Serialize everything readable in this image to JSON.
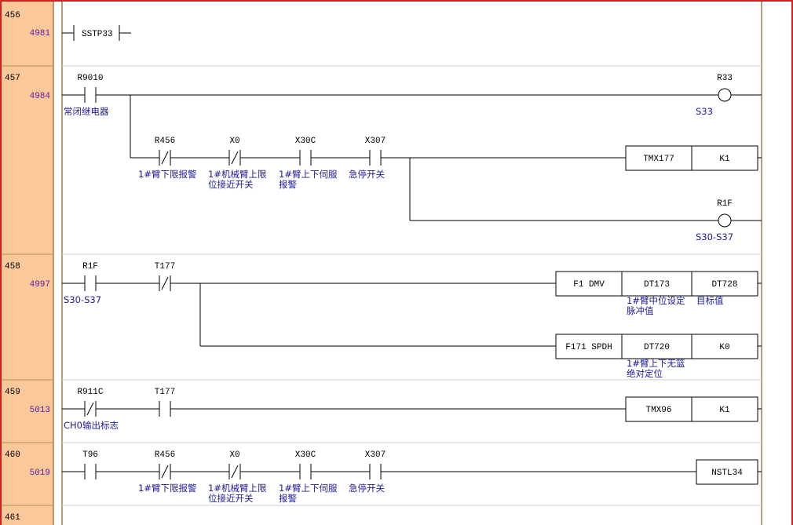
{
  "colors": {
    "gutter": "#fbc89a",
    "rail": "#a47c46",
    "wire": "#000000",
    "comment": "#1c1c9c",
    "address": "#5a1aa8",
    "border": "#d02020"
  },
  "rungs": [
    {
      "step": "456",
      "address": "4981",
      "elements": [
        {
          "kind": "step-ladder",
          "label": "SSTP33"
        }
      ]
    },
    {
      "step": "457",
      "address": "4984",
      "elements": [
        {
          "kind": "contact-no",
          "label": "R9010",
          "comment": [
            "常闭继电器"
          ]
        },
        {
          "kind": "coil",
          "label": "R33",
          "comment": [
            "S33"
          ]
        },
        {
          "kind": "contact-nc",
          "label": "R456",
          "comment": [
            "1#臂下限报警"
          ]
        },
        {
          "kind": "contact-nc",
          "label": "X0",
          "comment": [
            "1#机械臂上限",
            "位接近开关"
          ]
        },
        {
          "kind": "contact-no",
          "label": "X30C",
          "comment": [
            "1#臂上下伺服",
            "报警"
          ]
        },
        {
          "kind": "contact-no",
          "label": "X307",
          "comment": [
            "急停开关"
          ]
        },
        {
          "kind": "box",
          "cells": [
            "TMX177",
            "K1"
          ]
        },
        {
          "kind": "coil",
          "label": "R1F",
          "comment": [
            "S30-S37"
          ]
        }
      ]
    },
    {
      "step": "458",
      "address": "4997",
      "elements": [
        {
          "kind": "contact-no",
          "label": "R1F",
          "comment": [
            "S30-S37"
          ]
        },
        {
          "kind": "contact-nc",
          "label": "T177",
          "comment": []
        },
        {
          "kind": "box",
          "cells": [
            "F1 DMV",
            "DT173",
            "DT728"
          ],
          "comments": [
            [],
            [
              "1#臂中位设定",
              "脉冲值"
            ],
            [
              "目标值"
            ]
          ]
        },
        {
          "kind": "box",
          "cells": [
            "F171 SPDH",
            "DT720",
            "K0"
          ],
          "comments": [
            [],
            [
              "1#臂上下无篮",
              "绝对定位"
            ],
            []
          ]
        }
      ]
    },
    {
      "step": "459",
      "address": "5013",
      "elements": [
        {
          "kind": "contact-nc",
          "label": "R911C",
          "comment": [
            "CH0输出标志"
          ]
        },
        {
          "kind": "contact-no",
          "label": "T177",
          "comment": []
        },
        {
          "kind": "box",
          "cells": [
            "TMX96",
            "K1"
          ]
        }
      ]
    },
    {
      "step": "460",
      "address": "5019",
      "elements": [
        {
          "kind": "contact-no",
          "label": "T96",
          "comment": []
        },
        {
          "kind": "contact-nc",
          "label": "R456",
          "comment": [
            "1#臂下限报警"
          ]
        },
        {
          "kind": "contact-nc",
          "label": "X0",
          "comment": [
            "1#机械臂上限",
            "位接近开关"
          ]
        },
        {
          "kind": "contact-no",
          "label": "X30C",
          "comment": [
            "1#臂上下伺服",
            "报警"
          ]
        },
        {
          "kind": "contact-no",
          "label": "X307",
          "comment": [
            "急停开关"
          ]
        },
        {
          "kind": "box",
          "cells": [
            "NSTL34"
          ]
        }
      ]
    },
    {
      "step": "461",
      "address": "",
      "elements": []
    }
  ]
}
